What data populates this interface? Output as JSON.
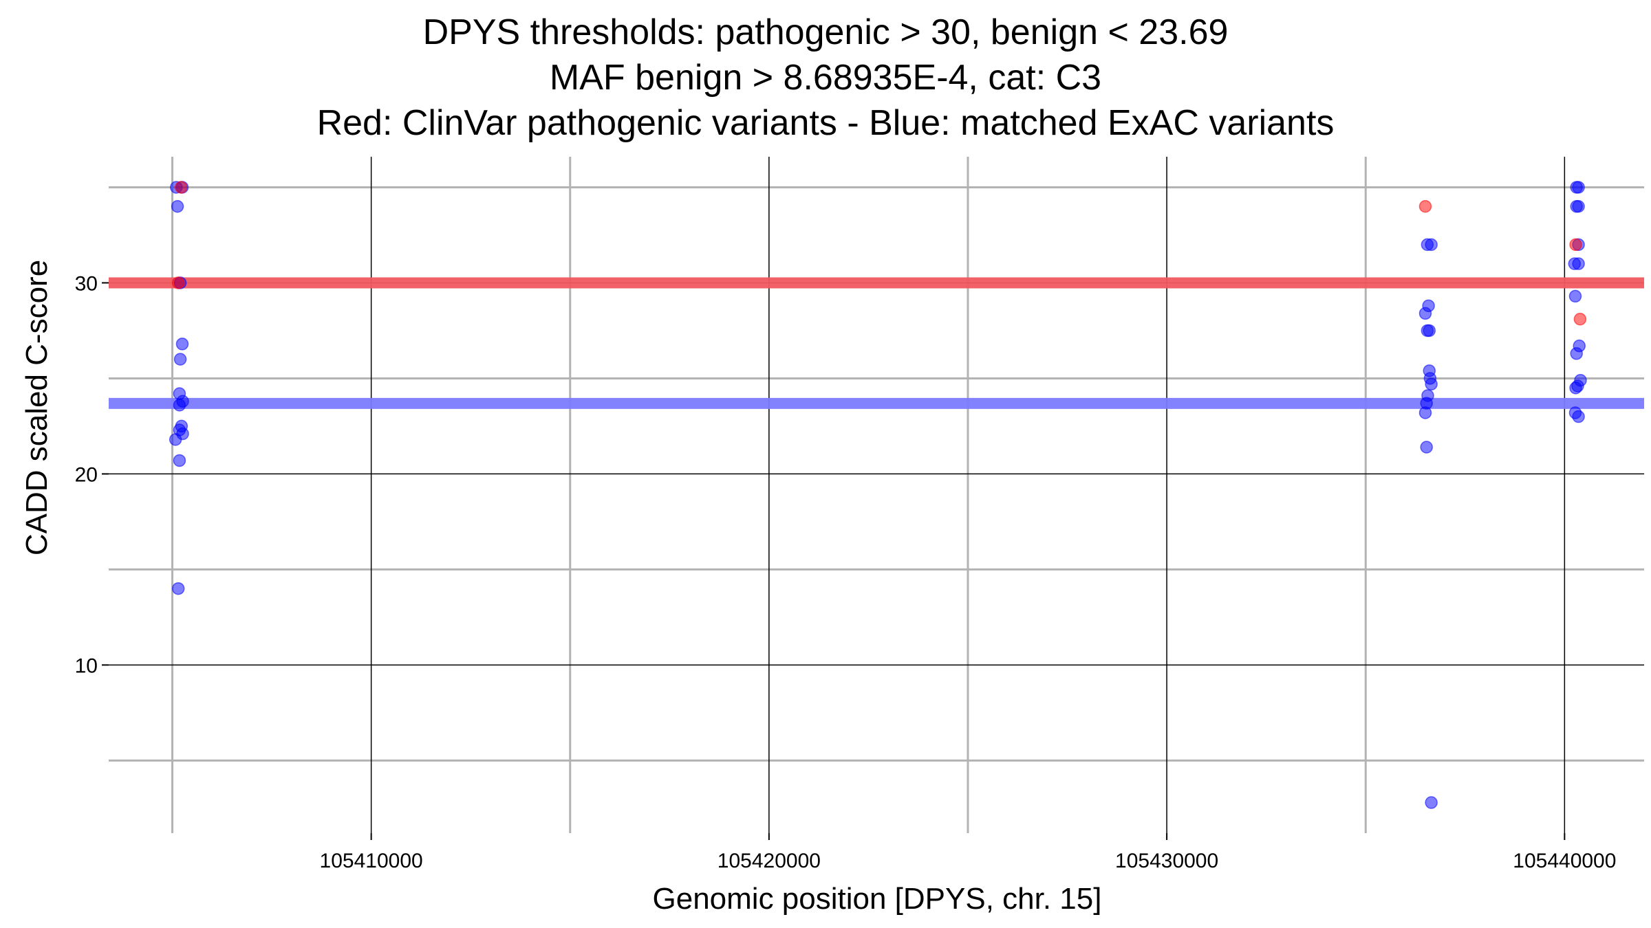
{
  "chart_data": {
    "type": "scatter",
    "title": [
      "DPYS thresholds: pathogenic > 30, benign < 23.69",
      "MAF benign > 8.68935E-4, cat: C3",
      "Red: ClinVar pathogenic variants - Blue: matched ExAC variants"
    ],
    "xlabel": "Genomic position [DPYS, chr. 15]",
    "ylabel": "CADD scaled C-score",
    "xlim": [
      105403400,
      105442000
    ],
    "ylim": [
      1.2,
      36.6
    ],
    "x_ticks": [
      105410000,
      105420000,
      105430000,
      105440000
    ],
    "x_tick_labels": [
      "105410000",
      "105420000",
      "105430000",
      "105440000"
    ],
    "y_ticks": [
      10,
      20,
      30
    ],
    "y_tick_labels": [
      "10",
      "20",
      "30"
    ],
    "x_minor_grid": [
      105405000,
      105415000,
      105425000,
      105435000
    ],
    "y_minor_grid": [
      5,
      15,
      25,
      35
    ],
    "grid": true,
    "thresholds": [
      {
        "name": "pathogenic",
        "value": 30,
        "color": "#f0585f"
      },
      {
        "name": "benign",
        "value": 23.69,
        "color": "#7b7bff"
      }
    ],
    "colors": {
      "pathogenic": "#ff0000",
      "benign": "#0000ff",
      "grid_major": "#000000",
      "grid_minor": "#b3b3b3"
    },
    "series": [
      {
        "color": "#0000ff",
        "points": [
          [
            105405100,
            35
          ],
          [
            105405130,
            34
          ],
          [
            105405250,
            35
          ],
          [
            105405200,
            30
          ],
          [
            105405250,
            26.8
          ],
          [
            105405200,
            26
          ],
          [
            105405180,
            24.2
          ],
          [
            105405260,
            23.8
          ],
          [
            105405180,
            23.6
          ],
          [
            105405230,
            22.5
          ],
          [
            105405180,
            22.3
          ],
          [
            105405260,
            22.1
          ],
          [
            105405080,
            21.8
          ],
          [
            105405180,
            20.7
          ],
          [
            105405150,
            14
          ],
          [
            105436550,
            32
          ],
          [
            105436650,
            32
          ],
          [
            105436580,
            28.8
          ],
          [
            105436500,
            28.4
          ],
          [
            105436550,
            27.5
          ],
          [
            105436600,
            27.5
          ],
          [
            105436600,
            25.4
          ],
          [
            105436620,
            25
          ],
          [
            105436650,
            24.7
          ],
          [
            105436560,
            24.1
          ],
          [
            105436530,
            23.7
          ],
          [
            105436500,
            23.2
          ],
          [
            105436530,
            21.4
          ],
          [
            105436650,
            2.8
          ],
          [
            105440300,
            35
          ],
          [
            105440350,
            35
          ],
          [
            105440300,
            34
          ],
          [
            105440350,
            34
          ],
          [
            105440350,
            32
          ],
          [
            105440250,
            31
          ],
          [
            105440350,
            31
          ],
          [
            105440270,
            29.3
          ],
          [
            105440370,
            26.7
          ],
          [
            105440300,
            26.3
          ],
          [
            105440400,
            24.9
          ],
          [
            105440280,
            24.5
          ],
          [
            105440330,
            24.6
          ],
          [
            105440270,
            23.2
          ],
          [
            105440350,
            23
          ]
        ]
      },
      {
        "color": "#ff0000",
        "points": [
          [
            105405220,
            35
          ],
          [
            105405150,
            30
          ],
          [
            105436500,
            34
          ],
          [
            105440280,
            32
          ],
          [
            105440390,
            28.1
          ]
        ]
      }
    ]
  }
}
